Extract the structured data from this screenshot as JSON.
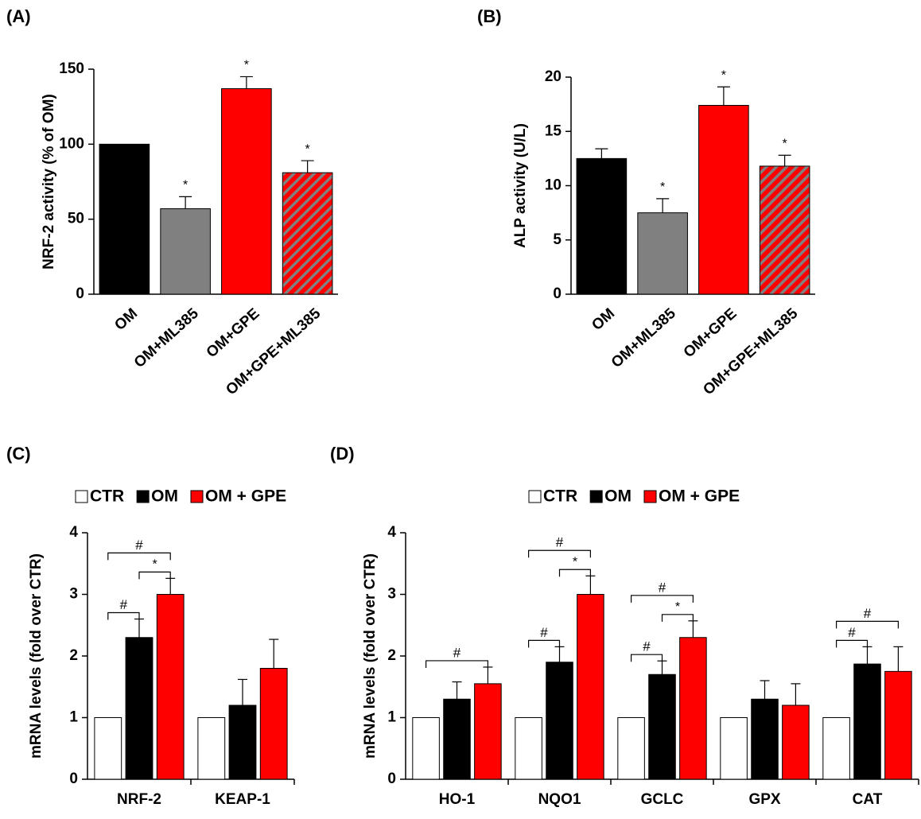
{
  "chart_data": [
    {
      "type": "bar",
      "title": "(A)",
      "ylabel": "NRF-2 activity (% of OM)",
      "categories": [
        "OM",
        "OM+ML385",
        "OM+GPE",
        "OM+GPE+ML385"
      ],
      "values": [
        100,
        57,
        137,
        81
      ],
      "errors": [
        null,
        8,
        8,
        8
      ],
      "annotations": [
        null,
        "*",
        "*",
        "*"
      ],
      "colors": [
        "#000000",
        "#808080",
        "#ff0000",
        "#ff0000"
      ],
      "hatched": [
        false,
        false,
        false,
        true
      ],
      "hatch_color": "#808080",
      "ylim": [
        0,
        150
      ],
      "yticks": [
        0,
        50,
        100,
        150
      ]
    },
    {
      "type": "bar",
      "title": "(B)",
      "ylabel": "ALP activity (U/L)",
      "categories": [
        "OM",
        "OM+ML385",
        "OM+GPE",
        "OM+GPE+ML385"
      ],
      "values": [
        12.5,
        7.5,
        17.4,
        11.8
      ],
      "errors": [
        0.9,
        1.3,
        1.7,
        1.0
      ],
      "annotations": [
        null,
        "*",
        "*",
        "*"
      ],
      "colors": [
        "#000000",
        "#808080",
        "#ff0000",
        "#ff0000"
      ],
      "hatched": [
        false,
        false,
        false,
        true
      ],
      "hatch_color": "#808080",
      "ylim": [
        0,
        20
      ],
      "yticks": [
        0,
        5,
        10,
        15,
        20
      ]
    },
    {
      "type": "grouped_bar",
      "title": "(C)",
      "ylabel": "mRNA levels (fold over CTR)",
      "categories": [
        "NRF-2",
        "KEAP-1"
      ],
      "series": [
        {
          "name": "CTR",
          "color": "#ffffff",
          "values": [
            1,
            1
          ],
          "errors": [
            null,
            null
          ]
        },
        {
          "name": "OM",
          "color": "#000000",
          "values": [
            2.3,
            1.2
          ],
          "errors": [
            0.3,
            0.42
          ]
        },
        {
          "name": "OM + GPE",
          "color": "#ff0000",
          "values": [
            3.0,
            1.8
          ],
          "errors": [
            0.26,
            0.47
          ]
        }
      ],
      "brackets": [
        {
          "category": "NRF-2",
          "from": "CTR",
          "to": "OM",
          "label": "#"
        },
        {
          "category": "NRF-2",
          "from": "OM",
          "to": "OM + GPE",
          "label": "*"
        },
        {
          "category": "NRF-2",
          "from": "CTR",
          "to": "OM + GPE",
          "label": "#"
        }
      ],
      "ylim": [
        0,
        4
      ],
      "yticks": [
        0,
        1,
        2,
        3,
        4
      ]
    },
    {
      "type": "grouped_bar",
      "title": "(D)",
      "ylabel": "mRNA levels (fold over CTR)",
      "categories": [
        "HO-1",
        "NQO1",
        "GCLC",
        "GPX",
        "CAT"
      ],
      "series": [
        {
          "name": "CTR",
          "color": "#ffffff",
          "values": [
            1,
            1,
            1,
            1,
            1
          ],
          "errors": [
            null,
            null,
            null,
            null,
            null
          ]
        },
        {
          "name": "OM",
          "color": "#000000",
          "values": [
            1.3,
            1.9,
            1.7,
            1.3,
            1.87
          ],
          "errors": [
            0.28,
            0.25,
            0.22,
            0.3,
            0.28
          ]
        },
        {
          "name": "OM + GPE",
          "color": "#ff0000",
          "values": [
            1.55,
            3.0,
            2.3,
            1.2,
            1.75
          ],
          "errors": [
            0.27,
            0.3,
            0.27,
            0.35,
            0.4
          ]
        }
      ],
      "brackets": [
        {
          "category": "HO-1",
          "from": "CTR",
          "to": "OM + GPE",
          "label": "#"
        },
        {
          "category": "NQO1",
          "from": "CTR",
          "to": "OM",
          "label": "#"
        },
        {
          "category": "NQO1",
          "from": "OM",
          "to": "OM + GPE",
          "label": "*"
        },
        {
          "category": "NQO1",
          "from": "CTR",
          "to": "OM + GPE",
          "label": "#"
        },
        {
          "category": "GCLC",
          "from": "CTR",
          "to": "OM",
          "label": "#"
        },
        {
          "category": "GCLC",
          "from": "OM",
          "to": "OM + GPE",
          "label": "*"
        },
        {
          "category": "GCLC",
          "from": "CTR",
          "to": "OM + GPE",
          "label": "#"
        },
        {
          "category": "CAT",
          "from": "CTR",
          "to": "OM",
          "label": "#"
        },
        {
          "category": "CAT",
          "from": "CTR",
          "to": "OM + GPE",
          "label": "#"
        }
      ],
      "ylim": [
        0,
        4
      ],
      "yticks": [
        0,
        1,
        2,
        3,
        4
      ]
    }
  ]
}
